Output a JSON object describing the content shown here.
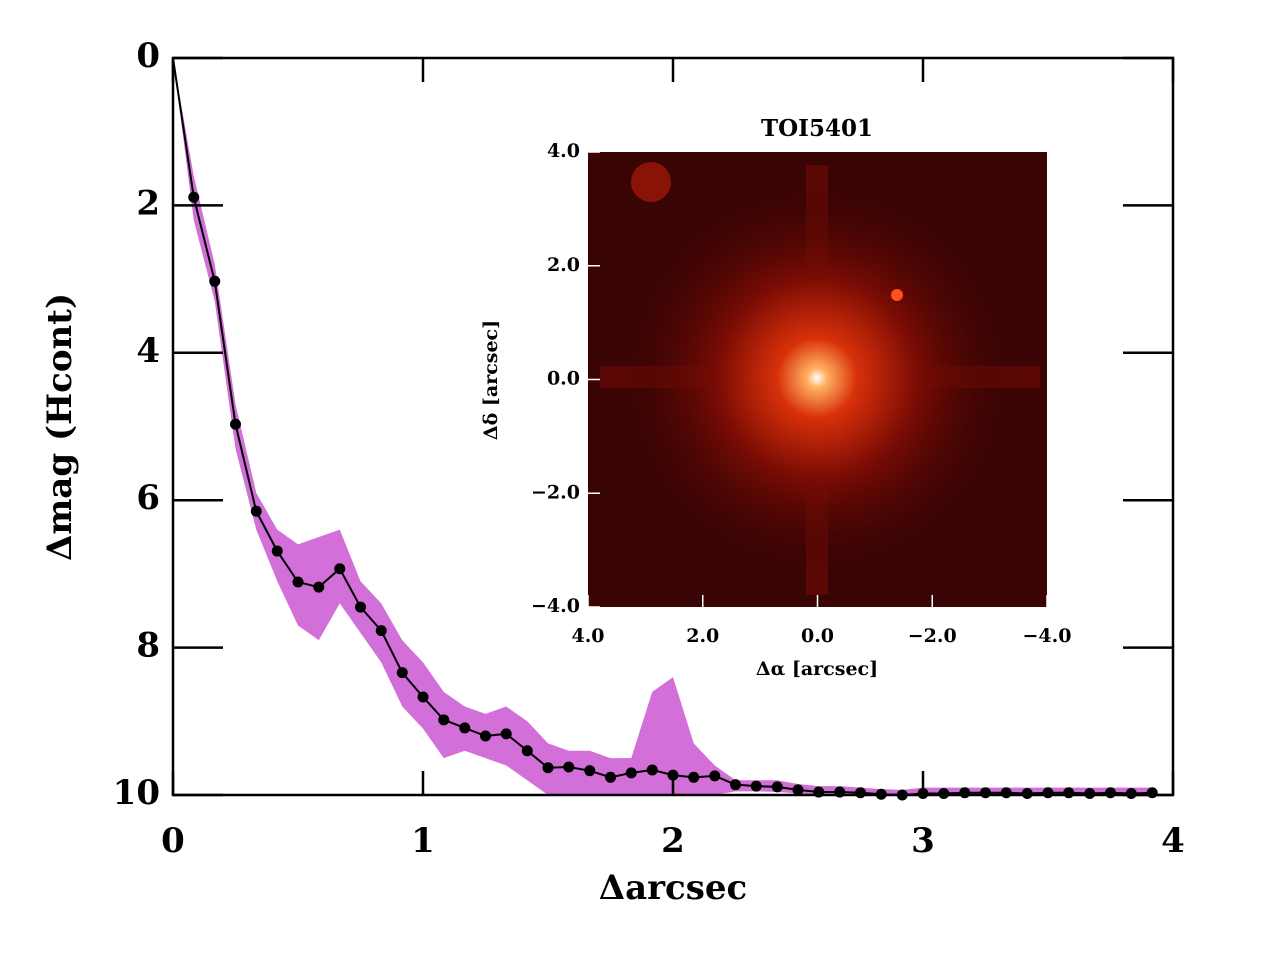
{
  "chart_data": {
    "type": "contrast",
    "x_label": "Δarcsec",
    "y_label": "Δmag (Hcont)",
    "x": [
      0,
      0.083,
      0.167,
      0.25,
      0.333,
      0.417,
      0.5,
      0.583,
      0.667,
      0.75,
      0.833,
      0.917,
      1.0,
      1.083,
      1.167,
      1.25,
      1.333,
      1.417,
      1.5,
      1.583,
      1.667,
      1.75,
      1.833,
      1.917,
      2.0,
      2.083,
      2.167,
      2.25,
      2.333,
      2.417,
      2.5,
      2.583,
      2.667,
      2.75,
      2.833,
      2.917,
      3.0,
      3.083,
      3.167,
      3.25,
      3.333,
      3.417,
      3.5,
      3.583,
      3.667,
      3.75,
      3.833,
      3.917
    ],
    "values": [
      0,
      1.89,
      3.03,
      4.97,
      6.15,
      6.69,
      7.11,
      7.18,
      6.93,
      7.45,
      7.77,
      8.34,
      8.67,
      8.98,
      9.09,
      9.2,
      9.17,
      9.4,
      9.63,
      9.62,
      9.67,
      9.76,
      9.7,
      9.66,
      9.73,
      9.76,
      9.74,
      9.86,
      9.88,
      9.89,
      9.93,
      9.96,
      9.96,
      9.97,
      9.99,
      10.0,
      9.98,
      9.98,
      9.97,
      9.97,
      9.97,
      9.98,
      9.97,
      9.97,
      9.98,
      9.97,
      9.98,
      9.97
    ],
    "band_low": [
      0,
      1.6,
      2.8,
      4.7,
      5.9,
      6.4,
      6.6,
      6.5,
      6.4,
      7.1,
      7.4,
      7.9,
      8.2,
      8.6,
      8.8,
      8.9,
      8.8,
      9.0,
      9.3,
      9.4,
      9.4,
      9.5,
      9.5,
      8.6,
      8.4,
      9.3,
      9.6,
      9.8,
      9.8,
      9.8,
      9.85,
      9.88,
      9.88,
      9.9,
      9.92,
      9.93,
      9.9,
      9.9,
      9.9,
      9.9,
      9.9,
      9.9,
      9.9,
      9.9,
      9.9,
      9.9,
      9.9,
      9.9
    ],
    "band_high": [
      0,
      2.2,
      3.3,
      5.3,
      6.4,
      7.1,
      7.7,
      7.9,
      7.4,
      7.8,
      8.2,
      8.8,
      9.1,
      9.5,
      9.4,
      9.5,
      9.6,
      9.8,
      10,
      10,
      10,
      10,
      10,
      10,
      10,
      10,
      10,
      9.95,
      9.95,
      9.96,
      9.98,
      10,
      10,
      10,
      10,
      10,
      10,
      10,
      10,
      10,
      10,
      10,
      10,
      10,
      10,
      10,
      10,
      10
    ],
    "line_color": "#000000",
    "band_color": "#d36fd8",
    "xlim": [
      0,
      4
    ],
    "xticks": [
      0,
      1,
      2,
      3,
      4
    ],
    "ylim": [
      0,
      10
    ],
    "y_inverted": true,
    "yticks": [
      0,
      2,
      4,
      6,
      8,
      10
    ],
    "inset": {
      "title": "TOI5401",
      "x_label": "Δα [arcsec]",
      "y_label": "Δδ [arcsec]",
      "xlim": [
        4,
        -4
      ],
      "ylim": [
        -4,
        4
      ],
      "xticks": [
        {
          "value": 4,
          "label": "4.0"
        },
        {
          "value": 2,
          "label": "2.0"
        },
        {
          "value": 0,
          "label": "0.0"
        },
        {
          "value": -2,
          "label": "−2.0"
        },
        {
          "value": -4,
          "label": "−4.0"
        }
      ],
      "yticks": [
        {
          "value": 4,
          "label": "4.0"
        },
        {
          "value": 2,
          "label": "2.0"
        },
        {
          "value": 0,
          "label": "0.0"
        },
        {
          "value": -2,
          "label": "−2.0"
        },
        {
          "value": -4,
          "label": "−4.0"
        }
      ]
    }
  }
}
